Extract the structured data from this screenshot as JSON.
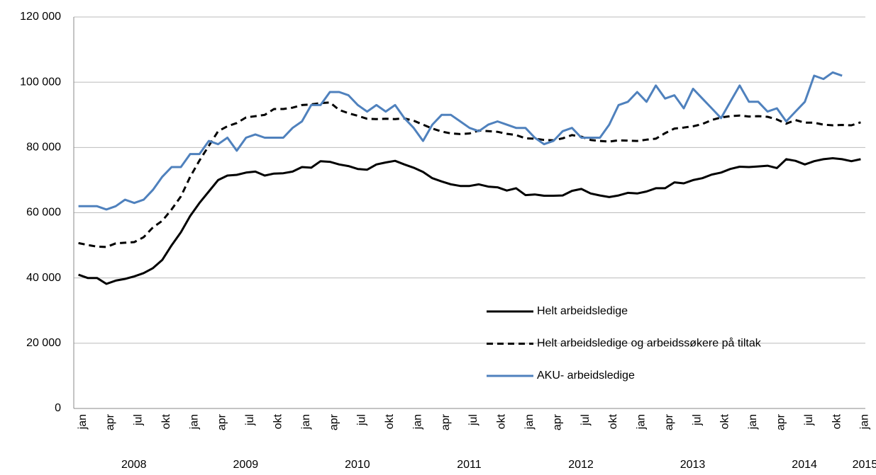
{
  "chart_data": {
    "type": "line",
    "categories": [
      "jan",
      null,
      null,
      "apr",
      null,
      null,
      "jul",
      null,
      null,
      "okt",
      null,
      null,
      "jan",
      null,
      null,
      "apr",
      null,
      null,
      "jul",
      null,
      null,
      "okt",
      null,
      null,
      "jan",
      null,
      null,
      "apr",
      null,
      null,
      "jul",
      null,
      null,
      "okt",
      null,
      null,
      "jan",
      null,
      null,
      "apr",
      null,
      null,
      "jul",
      null,
      null,
      "okt",
      null,
      null,
      "jan",
      null,
      null,
      "apr",
      null,
      null,
      "jul",
      null,
      null,
      "okt",
      null,
      null,
      "jan",
      null,
      null,
      "apr",
      null,
      null,
      "jul",
      null,
      null,
      "okt",
      null,
      null,
      "jan",
      null,
      null,
      "apr",
      null,
      null,
      "jul",
      null,
      null,
      "okt",
      null,
      null,
      "jan"
    ],
    "year_groups": [
      {
        "label": "2008",
        "start": 0,
        "end": 11
      },
      {
        "label": "2009",
        "start": 12,
        "end": 23
      },
      {
        "label": "2010",
        "start": 24,
        "end": 35
      },
      {
        "label": "2011",
        "start": 36,
        "end": 47
      },
      {
        "label": "2012",
        "start": 48,
        "end": 59
      },
      {
        "label": "2013",
        "start": 60,
        "end": 71
      },
      {
        "label": "2014",
        "start": 72,
        "end": 83
      },
      {
        "label": "2015",
        "start": 84,
        "end": 84
      }
    ],
    "series": [
      {
        "name": "Helt arbeidsledige",
        "color": "#000000",
        "dash": false,
        "values": [
          41000,
          40000,
          40000,
          38200,
          39200,
          39700,
          40500,
          41500,
          43000,
          45500,
          50000,
          54000,
          59000,
          63000,
          66500,
          70000,
          71400,
          71600,
          72300,
          72600,
          71400,
          72000,
          72100,
          72600,
          74000,
          73800,
          75800,
          75600,
          74800,
          74300,
          73400,
          73200,
          74800,
          75400,
          75900,
          74800,
          73800,
          72500,
          70600,
          69600,
          68700,
          68200,
          68200,
          68700,
          68000,
          67800,
          66800,
          67500,
          65400,
          65600,
          65200,
          65200,
          65300,
          66700,
          67300,
          65900,
          65300,
          64800,
          65300,
          66100,
          65900,
          66500,
          67500,
          67500,
          69300,
          69000,
          70000,
          70600,
          71700,
          72300,
          73400,
          74100,
          74000,
          74200,
          74400,
          73700,
          76400,
          75900,
          74800,
          75800,
          76400,
          76700,
          76400,
          75800,
          76400
        ]
      },
      {
        "name": "Helt arbeidsledige og arbeidssøkere på tiltak",
        "color": "#000000",
        "dash": true,
        "values": [
          50700,
          50100,
          49600,
          49500,
          50600,
          50800,
          51000,
          52500,
          55500,
          57500,
          61000,
          65000,
          71000,
          76000,
          80500,
          85000,
          86500,
          87500,
          89200,
          89600,
          90000,
          91800,
          91800,
          92200,
          93000,
          93200,
          93600,
          93800,
          91500,
          90500,
          89700,
          88800,
          88700,
          88800,
          88700,
          88900,
          88200,
          87000,
          85800,
          84900,
          84300,
          84100,
          84300,
          85200,
          85000,
          84800,
          84200,
          83800,
          82800,
          82700,
          82300,
          82200,
          82800,
          83800,
          83300,
          82300,
          82000,
          81800,
          82200,
          82100,
          82000,
          82400,
          82700,
          84400,
          85800,
          86100,
          86500,
          87200,
          88400,
          89200,
          89600,
          89800,
          89500,
          89600,
          89400,
          88600,
          87300,
          88400,
          87600,
          87600,
          87000,
          86800,
          86900,
          86800,
          87700
        ]
      },
      {
        "name": "AKU- arbeidsledige",
        "color": "#4f81bd",
        "dash": false,
        "values": [
          62000,
          62000,
          62000,
          61000,
          62000,
          64000,
          63000,
          64000,
          67000,
          71000,
          74000,
          74000,
          78000,
          78000,
          82000,
          81000,
          83000,
          79000,
          83000,
          84000,
          83000,
          83000,
          83000,
          86000,
          88000,
          93000,
          93000,
          97000,
          97000,
          96000,
          93000,
          91000,
          93000,
          91000,
          93000,
          89000,
          86000,
          82000,
          87000,
          90000,
          90000,
          88000,
          86000,
          85000,
          87000,
          88000,
          87000,
          86000,
          86000,
          83000,
          81000,
          82000,
          85000,
          86000,
          83000,
          83000,
          83000,
          87000,
          93000,
          94000,
          97000,
          94000,
          99000,
          95000,
          96000,
          92000,
          98000,
          95000,
          92000,
          89000,
          94000,
          99000,
          94000,
          94000,
          91000,
          92000,
          88000,
          91000,
          94000,
          102000,
          101000,
          103000,
          102000,
          null,
          null
        ]
      }
    ],
    "ylim": [
      0,
      120000
    ],
    "yticks": [
      0,
      {
        "value": 20000,
        "label": "20 000"
      },
      {
        "value": 40000,
        "label": "40 000"
      },
      {
        "value": 60000,
        "label": "60 000"
      },
      {
        "value": 80000,
        "label": "80 000"
      },
      {
        "value": 100000,
        "label": "100 000"
      },
      {
        "value": 120000,
        "label": "120 000"
      }
    ],
    "grid": true,
    "legend": "lower right"
  }
}
